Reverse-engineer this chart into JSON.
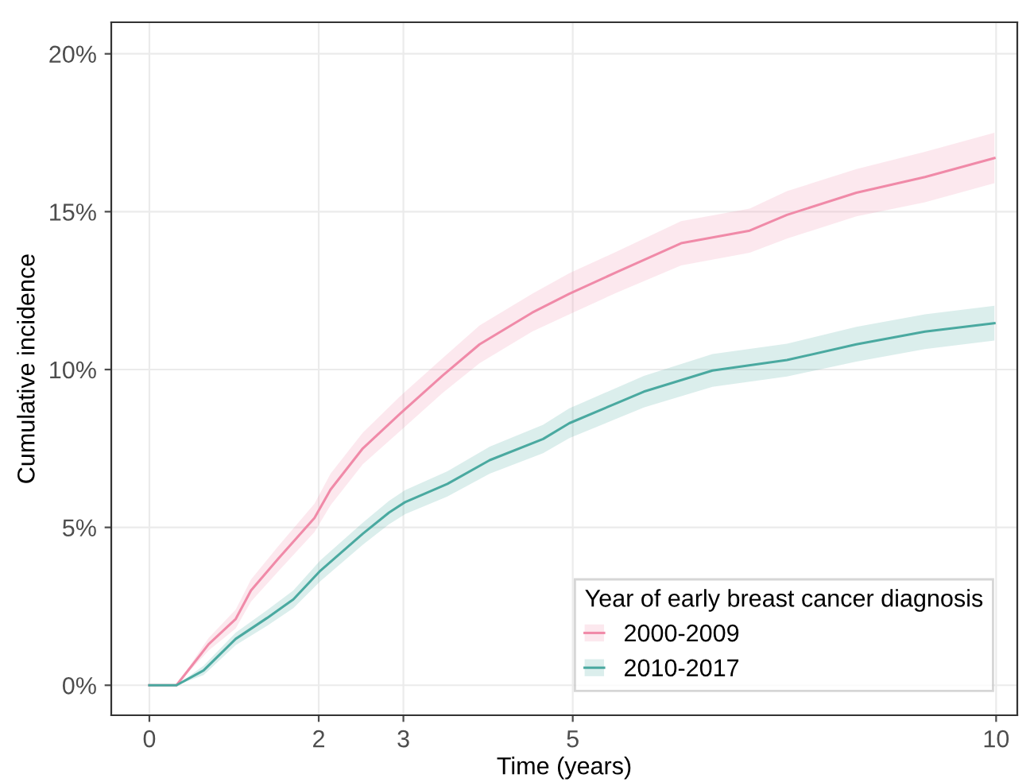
{
  "chart_data": {
    "type": "line",
    "xlabel": "Time (years)",
    "ylabel": "Cumulative incidence",
    "legend_title": "Year of early breast cancer diagnosis",
    "legend": "bottom right",
    "grid": true,
    "xlim": [
      -0.45,
      10.25
    ],
    "ylim": [
      -0.95,
      21
    ],
    "xticks": [
      0,
      2,
      3,
      5,
      10
    ],
    "yticks": [
      {
        "value": 0,
        "label": "0%"
      },
      {
        "value": 5,
        "label": "5%"
      },
      {
        "value": 10,
        "label": "10%"
      },
      {
        "value": 15,
        "label": "15%"
      },
      {
        "value": 20,
        "label": "20%"
      }
    ],
    "series": [
      {
        "name": "2000-2009",
        "color": "#f08aa8",
        "x": [
          0,
          0.32,
          0.7,
          1.02,
          1.2,
          1.52,
          1.95,
          2.14,
          2.52,
          2.96,
          3.46,
          3.9,
          4.52,
          4.96,
          5.53,
          6.28,
          7.09,
          7.53,
          8.35,
          9.16,
          9.98
        ],
        "values": [
          0,
          0,
          1.3,
          2.1,
          3.0,
          4.0,
          5.3,
          6.2,
          7.5,
          8.6,
          9.8,
          10.8,
          11.8,
          12.4,
          13.1,
          14.0,
          14.4,
          14.9,
          15.6,
          16.1,
          16.7
        ],
        "lower": [
          0,
          0,
          1.1,
          1.8,
          2.65,
          3.6,
          4.85,
          5.7,
          7.0,
          8.05,
          9.25,
          10.2,
          11.2,
          11.75,
          12.45,
          13.3,
          13.7,
          14.15,
          14.85,
          15.3,
          15.9
        ],
        "upper": [
          0,
          0,
          1.5,
          2.4,
          3.35,
          4.4,
          5.75,
          6.7,
          8.0,
          9.15,
          10.35,
          11.4,
          12.4,
          13.05,
          13.75,
          14.7,
          15.1,
          15.65,
          16.35,
          16.9,
          17.5
        ]
      },
      {
        "name": "2010-2017",
        "color": "#4aa9a0",
        "x": [
          0,
          0.32,
          0.64,
          1.02,
          1.39,
          1.7,
          2.02,
          2.52,
          2.83,
          3.02,
          3.52,
          4.02,
          4.65,
          4.96,
          5.84,
          6.65,
          7.53,
          8.35,
          9.16,
          9.98
        ],
        "values": [
          0,
          0,
          0.47,
          1.47,
          2.13,
          2.72,
          3.63,
          4.8,
          5.47,
          5.8,
          6.38,
          7.13,
          7.8,
          8.3,
          9.3,
          9.97,
          10.3,
          10.8,
          11.2,
          11.47
        ],
        "lower": [
          0,
          0,
          0.32,
          1.27,
          1.88,
          2.44,
          3.3,
          4.45,
          5.1,
          5.42,
          5.98,
          6.7,
          7.35,
          7.83,
          8.8,
          9.45,
          9.78,
          10.25,
          10.65,
          10.92
        ],
        "upper": [
          0,
          0,
          0.62,
          1.67,
          2.38,
          3.0,
          3.96,
          5.15,
          5.84,
          6.18,
          6.78,
          7.56,
          8.25,
          8.77,
          9.8,
          10.49,
          10.82,
          11.35,
          11.75,
          12.02
        ]
      }
    ]
  }
}
